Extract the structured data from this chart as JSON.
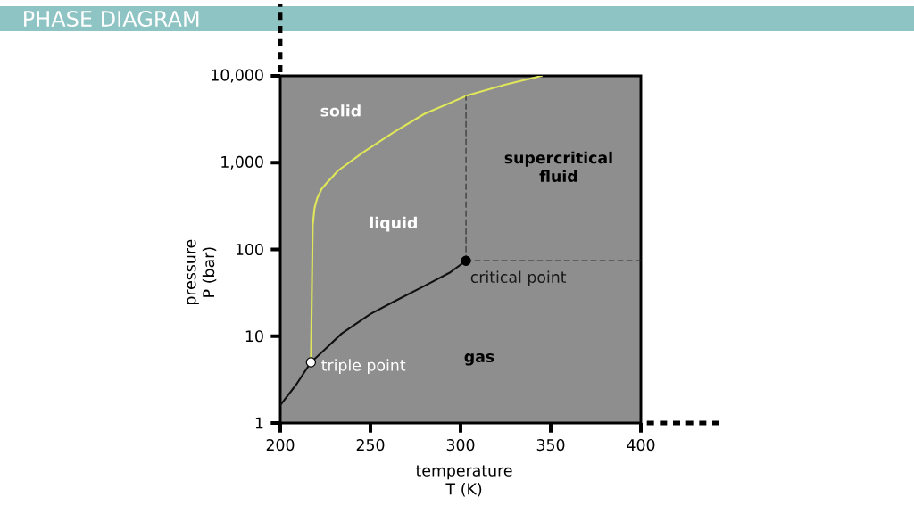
{
  "chart_data": {
    "type": "line",
    "title": "PHASE DIAGRAM",
    "xlabel": "temperature T (K)",
    "ylabel": "pressure P (bar)",
    "xlim": [
      200,
      400
    ],
    "ylim": [
      1,
      10000
    ],
    "xticks": [
      200,
      250,
      300,
      350,
      400
    ],
    "yticks": [
      1,
      10,
      100,
      {
        "value": 1000,
        "label": "1,000"
      },
      {
        "value": 10000,
        "label": "10,000"
      }
    ],
    "log": "y",
    "series": [
      {
        "color": "#dfe65a",
        "marker": "none",
        "line_style": "solid",
        "x": [
          217,
          218,
          219,
          220.5,
          223,
          226,
          229,
          232,
          246,
          263,
          280,
          304,
          325,
          345
        ],
        "values": [
          5,
          190,
          300,
          390,
          500,
          590,
          690,
          808,
          1320,
          2240,
          3660,
          5970,
          7950,
          10000
        ]
      },
      {
        "color": "#111111",
        "marker": "none",
        "line_style": "solid",
        "x": [
          200,
          209,
          217,
          224,
          234,
          250,
          263,
          280,
          294,
          303
        ],
        "values": [
          1.6,
          2.8,
          5,
          6.8,
          10.7,
          18,
          25,
          38,
          54,
          74
        ]
      },
      {
        "color": "#333333",
        "marker": "none",
        "line_style": "dashed",
        "x": [
          303,
          303
        ],
        "values": [
          74,
          5800
        ]
      },
      {
        "color": "#333333",
        "marker": "none",
        "line_style": "dashed",
        "x": [
          303,
          400
        ],
        "values": [
          74,
          74
        ]
      },
      {
        "type": "scatter",
        "color": "#ffffff",
        "marker": "circle",
        "x": [
          217
        ],
        "values": [
          5
        ]
      },
      {
        "type": "scatter",
        "color": "#000000",
        "marker": "circle",
        "x": [
          303
        ],
        "values": [
          74
        ]
      }
    ],
    "annotations": [
      "solid",
      "liquid",
      "supercritical fluid",
      "gas",
      {
        "text": "critical point",
        "x": 303,
        "y": 74
      },
      {
        "text": "triple point",
        "x": 217,
        "y": 5
      }
    ]
  }
}
